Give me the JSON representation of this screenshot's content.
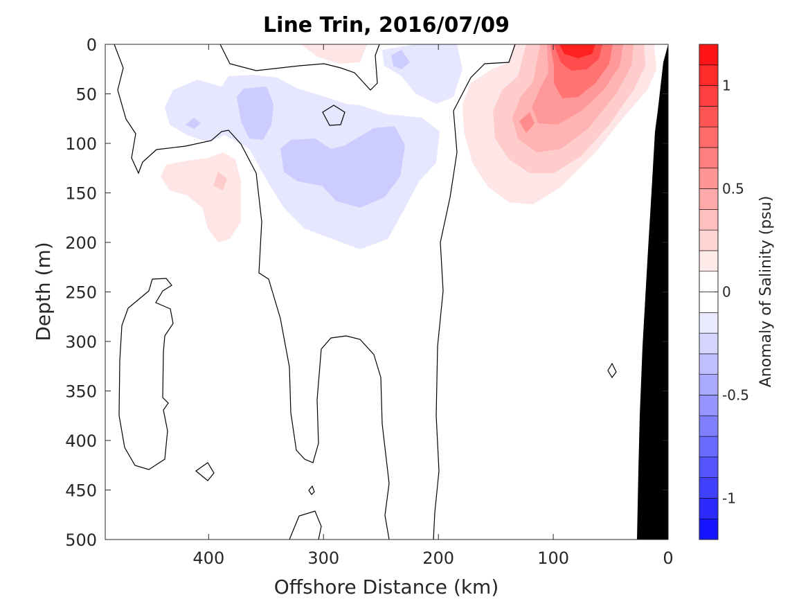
{
  "chart_data": {
    "type": "heatmap",
    "title": "Line Trin, 2016/07/09",
    "xlabel": "Offshore Distance (km)",
    "ylabel": "Depth (m)",
    "colorbar_label": "Anomaly of Salinity (psu)",
    "x_reversed": true,
    "y_reversed": true,
    "xlim": [
      490,
      0
    ],
    "ylim": [
      0,
      500
    ],
    "x_ticks": [
      "400",
      "300",
      "200",
      "100",
      "0"
    ],
    "x_tick_values": [
      400,
      300,
      200,
      100,
      0
    ],
    "y_ticks": [
      "0",
      "50",
      "100",
      "150",
      "200",
      "250",
      "300",
      "350",
      "400",
      "450",
      "500"
    ],
    "y_tick_values": [
      0,
      50,
      100,
      150,
      200,
      250,
      300,
      350,
      400,
      450,
      500
    ],
    "clim": [
      -1.2,
      1.2
    ],
    "contour_interval": 0.1,
    "colorbar_ticks": [
      "1",
      "0.5",
      "0",
      "-0.5",
      "-1"
    ],
    "colorbar_tick_values": [
      1,
      0.5,
      0,
      -0.5,
      -1
    ],
    "colormap": {
      "negative": "#0000ff",
      "zero": "#ffffff",
      "positive": "#ff0000"
    },
    "zero_contour_color": "#000000",
    "bathymetry_color": "#000000",
    "features": [
      {
        "name": "nearshore-salty-core",
        "x_center": 80,
        "depth_center": 0,
        "max_anomaly": 1.2
      },
      {
        "name": "subsurface-positive-lobe",
        "x_center": 120,
        "depth_center": 80,
        "max_anomaly": 0.5
      },
      {
        "name": "offshore-positive-patch",
        "x_center": 390,
        "depth_center": 140,
        "max_anomaly": 0.3
      },
      {
        "name": "surface-positive-patch",
        "x_center": 320,
        "depth_center": 5,
        "max_anomaly": 0.15
      },
      {
        "name": "fresh-core-central",
        "x_center": 270,
        "depth_center": 120,
        "min_anomaly": -0.3
      },
      {
        "name": "fresh-core-upper",
        "x_center": 340,
        "depth_center": 60,
        "min_anomaly": -0.3
      },
      {
        "name": "fresh-surface-patch",
        "x_center": 230,
        "depth_center": 20,
        "min_anomaly": -0.2
      }
    ]
  }
}
